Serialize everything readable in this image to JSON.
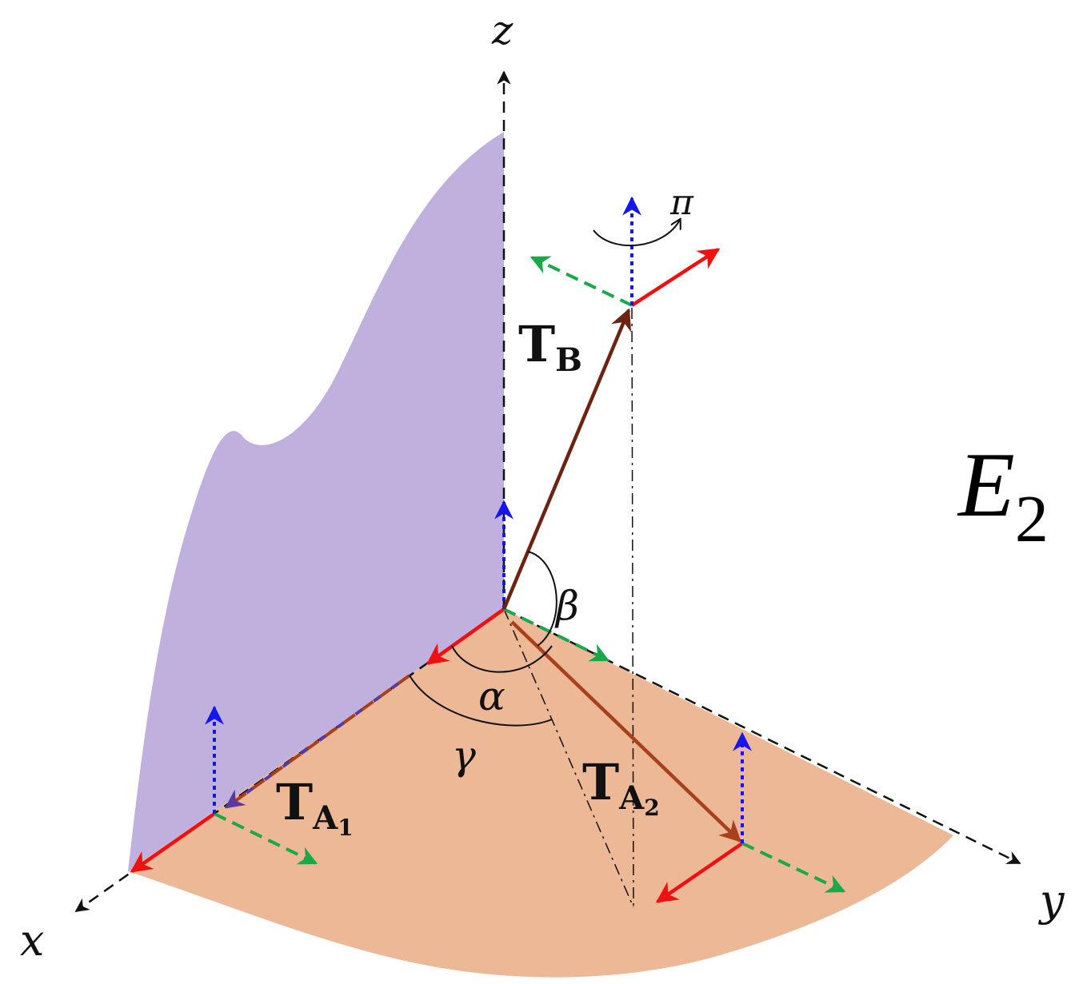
{
  "title": "E",
  "title_subscript": "2",
  "axes": {
    "x": "x",
    "y": "y",
    "z": "z"
  },
  "vectors": {
    "tb": {
      "main": "T",
      "sub": "B"
    },
    "ta1": {
      "main": "T",
      "sub": "A",
      "subsub": "1"
    },
    "ta2": {
      "main": "T",
      "sub": "A",
      "subsub": "2"
    }
  },
  "angles": {
    "alpha": "α",
    "beta": "β",
    "gamma": "γ",
    "pi": "π"
  },
  "colors": {
    "wall": "#c0b0de",
    "floor": "#ecb896",
    "red": "#ee1111",
    "green": "#1aa84a",
    "blue": "#1515ee",
    "brown": "#6b2412",
    "brown_light": "#a8401c",
    "purple": "#5a3aa0"
  }
}
